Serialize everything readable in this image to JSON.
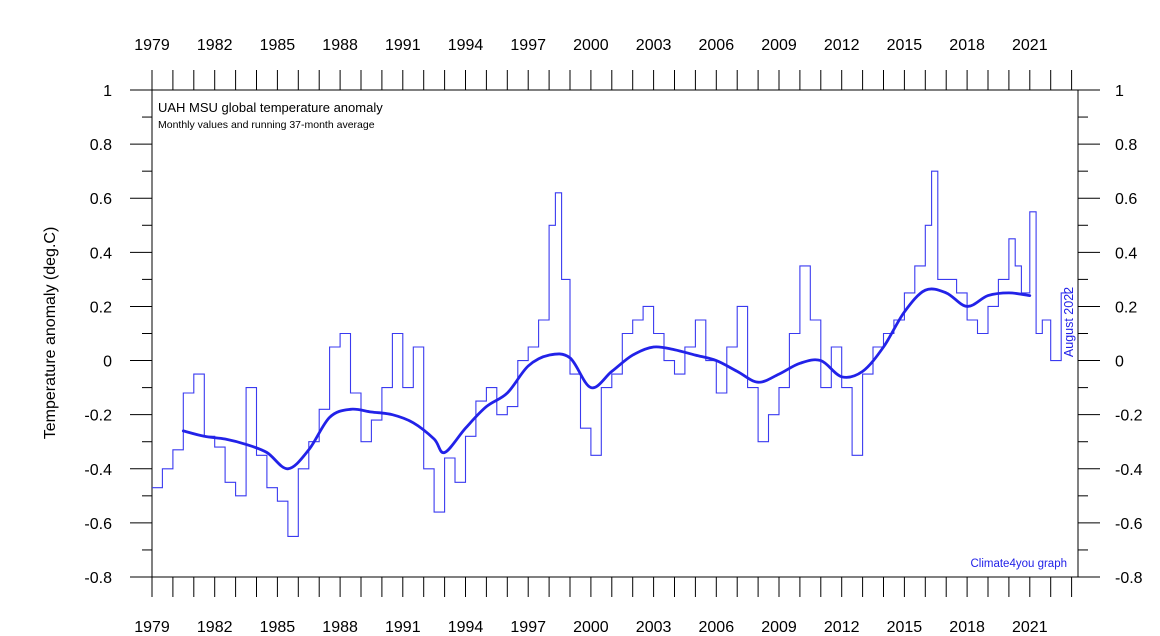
{
  "chart_data": {
    "type": "line",
    "title": "UAH MSU global temperature anomaly",
    "subtitle": "Monthly values and running 37-month average",
    "ylabel": "Temperature anomaly (deg.C)",
    "xlabel": "",
    "credit": "Climate4you graph",
    "date_stamp": "August 2022",
    "xlim": [
      1979,
      2023.5
    ],
    "ylim": [
      -0.8,
      1
    ],
    "x_ticks": [
      1979,
      1982,
      1985,
      1988,
      1991,
      1994,
      1997,
      2000,
      2003,
      2006,
      2009,
      2012,
      2015,
      2018,
      2021
    ],
    "x_tick_labels": [
      "1979",
      "1982",
      "1985",
      "1988",
      "1991",
      "1994",
      "1997",
      "2000",
      "2003",
      "2006",
      "2009",
      "2012",
      "2015",
      "2018",
      "2021"
    ],
    "y_ticks": [
      -0.8,
      -0.6,
      -0.4,
      -0.2,
      0,
      0.2,
      0.4,
      0.6,
      0.8,
      1
    ],
    "y_tick_labels": [
      "-0.8",
      "-0.6",
      "-0.4",
      "-0.2",
      "0",
      "0.2",
      "0.4",
      "0.6",
      "0.8",
      "1"
    ],
    "grid": false,
    "series": [
      {
        "name": "Monthly values",
        "style": "step",
        "color": "#3a3af0",
        "x": [
          1979.0,
          1979.5,
          1980.0,
          1980.5,
          1981.0,
          1981.5,
          1982.0,
          1982.5,
          1983.0,
          1983.5,
          1984.0,
          1984.5,
          1985.0,
          1985.5,
          1986.0,
          1986.5,
          1987.0,
          1987.5,
          1988.0,
          1988.5,
          1989.0,
          1989.5,
          1990.0,
          1990.5,
          1991.0,
          1991.5,
          1992.0,
          1992.5,
          1993.0,
          1993.5,
          1994.0,
          1994.5,
          1995.0,
          1995.5,
          1996.0,
          1996.5,
          1997.0,
          1997.5,
          1998.0,
          1998.3,
          1998.6,
          1999.0,
          1999.5,
          2000.0,
          2000.5,
          2001.0,
          2001.5,
          2002.0,
          2002.5,
          2003.0,
          2003.5,
          2004.0,
          2004.5,
          2005.0,
          2005.5,
          2006.0,
          2006.5,
          2007.0,
          2007.5,
          2008.0,
          2008.5,
          2009.0,
          2009.5,
          2010.0,
          2010.5,
          2011.0,
          2011.5,
          2012.0,
          2012.5,
          2013.0,
          2013.5,
          2014.0,
          2014.5,
          2015.0,
          2015.5,
          2016.0,
          2016.3,
          2016.6,
          2017.0,
          2017.5,
          2018.0,
          2018.5,
          2019.0,
          2019.5,
          2020.0,
          2020.3,
          2020.6,
          2021.0,
          2021.3,
          2021.6,
          2022.0,
          2022.5
        ],
        "y": [
          -0.47,
          -0.4,
          -0.33,
          -0.12,
          -0.05,
          -0.28,
          -0.32,
          -0.45,
          -0.5,
          -0.1,
          -0.35,
          -0.47,
          -0.52,
          -0.65,
          -0.4,
          -0.3,
          -0.18,
          0.05,
          0.1,
          -0.12,
          -0.3,
          -0.22,
          -0.1,
          0.1,
          -0.1,
          0.05,
          -0.4,
          -0.56,
          -0.36,
          -0.45,
          -0.28,
          -0.15,
          -0.1,
          -0.2,
          -0.17,
          0.0,
          0.05,
          0.15,
          0.5,
          0.62,
          0.3,
          -0.05,
          -0.25,
          -0.35,
          -0.1,
          -0.05,
          0.1,
          0.15,
          0.2,
          0.1,
          0.0,
          -0.05,
          0.05,
          0.15,
          0.0,
          -0.12,
          0.05,
          0.2,
          -0.1,
          -0.3,
          -0.2,
          -0.1,
          0.1,
          0.35,
          0.15,
          -0.1,
          0.05,
          -0.1,
          -0.35,
          -0.05,
          0.05,
          0.1,
          0.15,
          0.25,
          0.35,
          0.5,
          0.7,
          0.3,
          0.3,
          0.25,
          0.15,
          0.1,
          0.2,
          0.3,
          0.45,
          0.35,
          0.25,
          0.55,
          0.1,
          0.15,
          0.0,
          0.25
        ]
      },
      {
        "name": "Running 37-month average",
        "style": "line",
        "color": "#2222e8",
        "x": [
          1980.5,
          1981.5,
          1982.5,
          1983.5,
          1984.5,
          1985.5,
          1986.5,
          1987.5,
          1988.5,
          1989.5,
          1990.5,
          1991.5,
          1992.5,
          1993.0,
          1994.0,
          1995.0,
          1996.0,
          1997.0,
          1998.0,
          1999.0,
          2000.0,
          2001.0,
          2002.0,
          2003.0,
          2004.0,
          2005.0,
          2006.0,
          2007.0,
          2008.0,
          2009.0,
          2010.0,
          2011.0,
          2012.0,
          2013.0,
          2014.0,
          2015.0,
          2016.0,
          2017.0,
          2018.0,
          2019.0,
          2020.0,
          2021.0
        ],
        "y": [
          -0.26,
          -0.28,
          -0.29,
          -0.31,
          -0.34,
          -0.4,
          -0.33,
          -0.21,
          -0.18,
          -0.19,
          -0.2,
          -0.23,
          -0.29,
          -0.34,
          -0.25,
          -0.17,
          -0.12,
          -0.02,
          0.02,
          0.01,
          -0.1,
          -0.04,
          0.02,
          0.05,
          0.04,
          0.02,
          0.0,
          -0.04,
          -0.08,
          -0.05,
          -0.01,
          0.0,
          -0.06,
          -0.04,
          0.05,
          0.18,
          0.26,
          0.25,
          0.2,
          0.24,
          0.25,
          0.24
        ]
      }
    ]
  }
}
